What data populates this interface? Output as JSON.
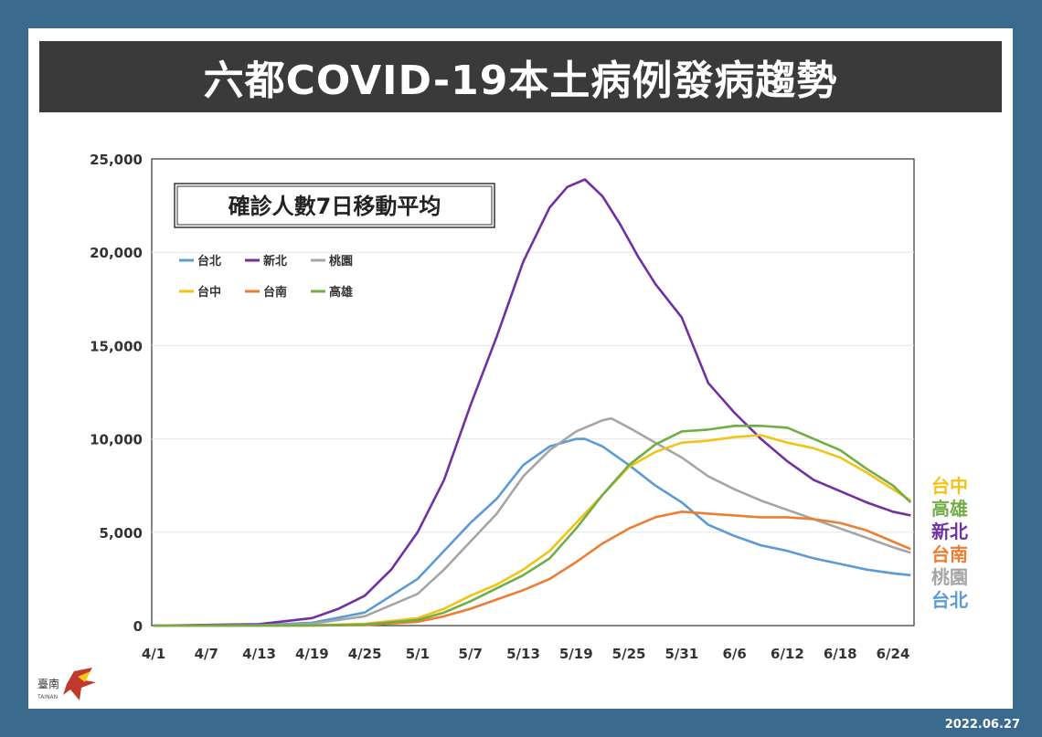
{
  "title": "六都COVID-19本土病例發病趨勢",
  "date": "2022.06.27",
  "logo_text": "臺南",
  "logo_subtext": "TAINAN",
  "colors": {
    "台北": "#5b9bd5",
    "新北": "#7030a0",
    "桃園": "#a5a5a5",
    "台中": "#f2c317",
    "台南": "#ed7d31",
    "高雄": "#70ad47"
  },
  "chart_data": {
    "type": "line",
    "title": "確診人數7日移動平均",
    "x_start": "4/1",
    "x_tick_labels": [
      "4/1",
      "4/7",
      "4/13",
      "4/19",
      "4/25",
      "5/1",
      "5/7",
      "5/13",
      "5/19",
      "5/25",
      "5/31",
      "6/6",
      "6/12",
      "6/18",
      "6/24"
    ],
    "y_tick_labels": [
      "0",
      "5,000",
      "10,000",
      "15,000",
      "20,000",
      "25,000"
    ],
    "ylim": [
      0,
      25000
    ],
    "grid": true,
    "legend_placement": "top-left",
    "legend": [
      "台北",
      "新北",
      "桃園",
      "台中",
      "台南",
      "高雄"
    ],
    "end_labels": [
      "台中",
      "高雄",
      "新北",
      "台南",
      "桃園",
      "台北"
    ],
    "series": [
      {
        "name": "台北",
        "points": [
          [
            "4/1",
            0
          ],
          [
            "4/13",
            30
          ],
          [
            "4/19",
            150
          ],
          [
            "4/25",
            700
          ],
          [
            "5/1",
            2500
          ],
          [
            "5/7",
            5500
          ],
          [
            "5/10",
            6800
          ],
          [
            "5/13",
            8600
          ],
          [
            "5/16",
            9600
          ],
          [
            "5/19",
            10000
          ],
          [
            "5/20",
            10000
          ],
          [
            "5/22",
            9600
          ],
          [
            "5/25",
            8600
          ],
          [
            "5/28",
            7500
          ],
          [
            "5/31",
            6600
          ],
          [
            "6/3",
            5400
          ],
          [
            "6/6",
            4800
          ],
          [
            "6/9",
            4300
          ],
          [
            "6/12",
            4000
          ],
          [
            "6/15",
            3600
          ],
          [
            "6/18",
            3300
          ],
          [
            "6/21",
            3000
          ],
          [
            "6/24",
            2800
          ],
          [
            "6/26",
            2700
          ]
        ]
      },
      {
        "name": "新北",
        "points": [
          [
            "4/1",
            0
          ],
          [
            "4/13",
            80
          ],
          [
            "4/19",
            400
          ],
          [
            "4/22",
            900
          ],
          [
            "4/25",
            1600
          ],
          [
            "4/28",
            3000
          ],
          [
            "5/1",
            5000
          ],
          [
            "5/4",
            7800
          ],
          [
            "5/7",
            11800
          ],
          [
            "5/10",
            15500
          ],
          [
            "5/13",
            19500
          ],
          [
            "5/16",
            22400
          ],
          [
            "5/18",
            23500
          ],
          [
            "5/20",
            23900
          ],
          [
            "5/22",
            23000
          ],
          [
            "5/24",
            21500
          ],
          [
            "5/26",
            19800
          ],
          [
            "5/28",
            18300
          ],
          [
            "5/31",
            16500
          ],
          [
            "6/3",
            13000
          ],
          [
            "6/6",
            11400
          ],
          [
            "6/9",
            10000
          ],
          [
            "6/12",
            8800
          ],
          [
            "6/15",
            7800
          ],
          [
            "6/18",
            7200
          ],
          [
            "6/21",
            6600
          ],
          [
            "6/24",
            6100
          ],
          [
            "6/26",
            5900
          ]
        ]
      },
      {
        "name": "桃園",
        "points": [
          [
            "4/1",
            0
          ],
          [
            "4/13",
            20
          ],
          [
            "4/19",
            100
          ],
          [
            "4/25",
            500
          ],
          [
            "5/1",
            1700
          ],
          [
            "5/4",
            3000
          ],
          [
            "5/7",
            4500
          ],
          [
            "5/10",
            6000
          ],
          [
            "5/13",
            8000
          ],
          [
            "5/16",
            9400
          ],
          [
            "5/19",
            10400
          ],
          [
            "5/22",
            11000
          ],
          [
            "5/23",
            11100
          ],
          [
            "5/25",
            10600
          ],
          [
            "5/28",
            9800
          ],
          [
            "5/31",
            9000
          ],
          [
            "6/3",
            8000
          ],
          [
            "6/6",
            7300
          ],
          [
            "6/9",
            6700
          ],
          [
            "6/12",
            6200
          ],
          [
            "6/15",
            5700
          ],
          [
            "6/18",
            5200
          ],
          [
            "6/21",
            4700
          ],
          [
            "6/24",
            4200
          ],
          [
            "6/26",
            3900
          ]
        ]
      },
      {
        "name": "台中",
        "points": [
          [
            "4/1",
            0
          ],
          [
            "4/19",
            10
          ],
          [
            "4/25",
            100
          ],
          [
            "5/1",
            400
          ],
          [
            "5/4",
            900
          ],
          [
            "5/7",
            1600
          ],
          [
            "5/10",
            2200
          ],
          [
            "5/13",
            3000
          ],
          [
            "5/16",
            4000
          ],
          [
            "5/19",
            5500
          ],
          [
            "5/22",
            7000
          ],
          [
            "5/25",
            8500
          ],
          [
            "5/28",
            9300
          ],
          [
            "5/31",
            9800
          ],
          [
            "6/3",
            9900
          ],
          [
            "6/6",
            10100
          ],
          [
            "6/9",
            10200
          ],
          [
            "6/12",
            9800
          ],
          [
            "6/15",
            9500
          ],
          [
            "6/18",
            9000
          ],
          [
            "6/21",
            8200
          ],
          [
            "6/24",
            7300
          ],
          [
            "6/26",
            6700
          ]
        ]
      },
      {
        "name": "台南",
        "points": [
          [
            "4/1",
            0
          ],
          [
            "4/19",
            5
          ],
          [
            "4/25",
            30
          ],
          [
            "5/1",
            200
          ],
          [
            "5/4",
            500
          ],
          [
            "5/7",
            900
          ],
          [
            "5/10",
            1400
          ],
          [
            "5/13",
            1900
          ],
          [
            "5/16",
            2500
          ],
          [
            "5/19",
            3400
          ],
          [
            "5/22",
            4400
          ],
          [
            "5/25",
            5200
          ],
          [
            "5/28",
            5800
          ],
          [
            "5/31",
            6100
          ],
          [
            "6/3",
            6000
          ],
          [
            "6/6",
            5900
          ],
          [
            "6/9",
            5800
          ],
          [
            "6/12",
            5800
          ],
          [
            "6/15",
            5700
          ],
          [
            "6/18",
            5500
          ],
          [
            "6/21",
            5100
          ],
          [
            "6/24",
            4500
          ],
          [
            "6/26",
            4100
          ]
        ]
      },
      {
        "name": "高雄",
        "points": [
          [
            "4/1",
            0
          ],
          [
            "4/19",
            10
          ],
          [
            "4/25",
            60
          ],
          [
            "5/1",
            300
          ],
          [
            "5/4",
            700
          ],
          [
            "5/7",
            1300
          ],
          [
            "5/10",
            2000
          ],
          [
            "5/13",
            2700
          ],
          [
            "5/16",
            3600
          ],
          [
            "5/19",
            5200
          ],
          [
            "5/22",
            7000
          ],
          [
            "5/25",
            8600
          ],
          [
            "5/28",
            9700
          ],
          [
            "5/31",
            10400
          ],
          [
            "6/3",
            10500
          ],
          [
            "6/6",
            10700
          ],
          [
            "6/9",
            10700
          ],
          [
            "6/12",
            10600
          ],
          [
            "6/15",
            10000
          ],
          [
            "6/18",
            9400
          ],
          [
            "6/21",
            8400
          ],
          [
            "6/24",
            7500
          ],
          [
            "6/26",
            6600
          ]
        ]
      }
    ]
  }
}
